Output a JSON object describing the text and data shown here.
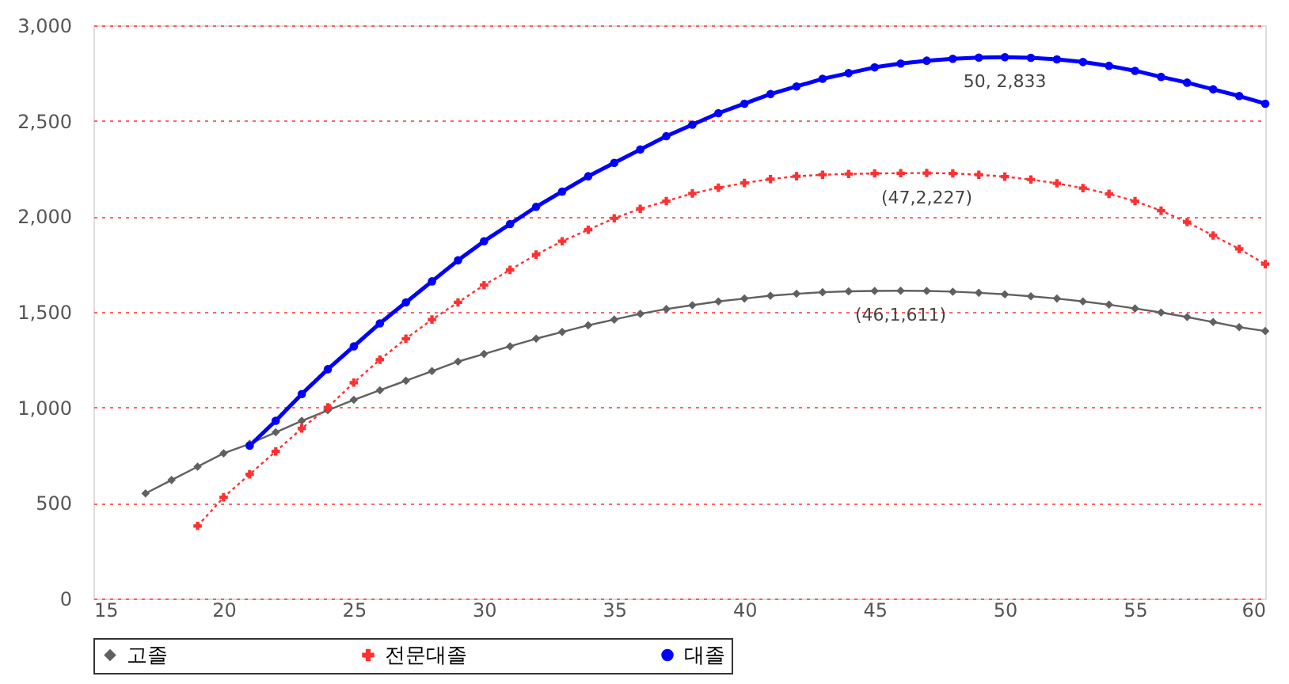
{
  "chart_data": {
    "type": "line",
    "xlim": [
      15,
      60
    ],
    "xticks": [
      15,
      20,
      25,
      30,
      35,
      40,
      45,
      50,
      55,
      60
    ],
    "ylim": [
      0,
      3000
    ],
    "yticks": [
      0,
      500,
      {
        "value": 1000,
        "label": "1,000"
      },
      {
        "value": 1500,
        "label": "1,500"
      },
      {
        "value": 2000,
        "label": "2,000"
      },
      {
        "value": 2500,
        "label": "2,500"
      },
      {
        "value": 3000,
        "label": "3,000"
      }
    ],
    "grid": "y",
    "legend": "bottom",
    "series": [
      {
        "name": "고졸",
        "color": "#606060",
        "marker": "diamond",
        "line_style": "solid",
        "x": [
          17,
          18,
          19,
          20,
          21,
          22,
          23,
          24,
          25,
          26,
          27,
          28,
          29,
          30,
          31,
          32,
          33,
          34,
          35,
          36,
          37,
          38,
          39,
          40,
          41,
          42,
          43,
          44,
          45,
          46,
          47,
          48,
          49,
          50,
          51,
          52,
          53,
          54,
          55,
          56,
          57,
          58,
          59,
          60
        ],
        "values": [
          550,
          620,
          690,
          760,
          810,
          870,
          930,
          985,
          1040,
          1090,
          1140,
          1190,
          1240,
          1280,
          1320,
          1360,
          1395,
          1430,
          1460,
          1490,
          1515,
          1535,
          1555,
          1570,
          1585,
          1595,
          1603,
          1608,
          1610,
          1611,
          1610,
          1606,
          1600,
          1592,
          1582,
          1570,
          1555,
          1538,
          1518,
          1497,
          1473,
          1447,
          1420,
          1400
        ]
      },
      {
        "name": "전문대졸",
        "color": "#ff3030",
        "marker": "cross",
        "line_style": "dotted",
        "x": [
          19,
          20,
          21,
          22,
          23,
          24,
          25,
          26,
          27,
          28,
          29,
          30,
          31,
          32,
          33,
          34,
          35,
          36,
          37,
          38,
          39,
          40,
          41,
          42,
          43,
          44,
          45,
          46,
          47,
          48,
          49,
          50,
          51,
          52,
          53,
          54,
          55,
          56,
          57,
          58,
          59,
          60
        ],
        "values": [
          380,
          530,
          650,
          770,
          890,
          1000,
          1130,
          1250,
          1360,
          1460,
          1550,
          1640,
          1720,
          1800,
          1870,
          1930,
          1990,
          2040,
          2080,
          2120,
          2150,
          2175,
          2195,
          2210,
          2218,
          2222,
          2225,
          2226,
          2227,
          2225,
          2218,
          2208,
          2193,
          2173,
          2148,
          2118,
          2080,
          2030,
          1970,
          1900,
          1830,
          1750
        ]
      },
      {
        "name": "대졸",
        "color": "#0000ff",
        "marker": "circle",
        "line_style": "solid",
        "x": [
          21,
          22,
          23,
          24,
          25,
          26,
          27,
          28,
          29,
          30,
          31,
          32,
          33,
          34,
          35,
          36,
          37,
          38,
          39,
          40,
          41,
          42,
          43,
          44,
          45,
          46,
          47,
          48,
          49,
          50,
          51,
          52,
          53,
          54,
          55,
          56,
          57,
          58,
          59,
          60
        ],
        "values": [
          800,
          930,
          1070,
          1200,
          1320,
          1440,
          1550,
          1660,
          1770,
          1870,
          1960,
          2050,
          2130,
          2210,
          2280,
          2350,
          2420,
          2480,
          2540,
          2590,
          2640,
          2680,
          2720,
          2750,
          2780,
          2800,
          2815,
          2825,
          2831,
          2833,
          2830,
          2822,
          2808,
          2788,
          2762,
          2730,
          2700,
          2665,
          2630,
          2590
        ]
      }
    ],
    "annotations": [
      {
        "text": "50, 2,833",
        "x": 50,
        "y": 2833
      },
      {
        "text": "(47,2,227)",
        "x": 47,
        "y": 2227
      },
      {
        "text": "(46,1,611)",
        "x": 46,
        "y": 1611
      }
    ]
  }
}
